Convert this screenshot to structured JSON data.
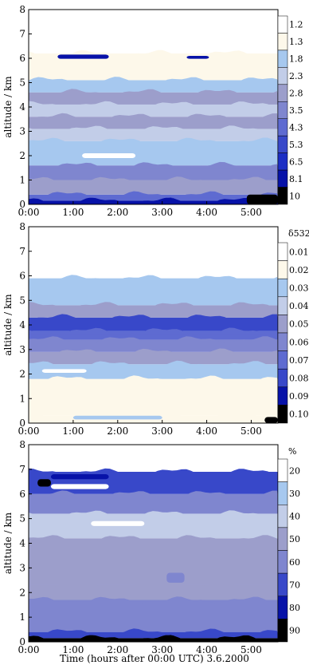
{
  "x_axis_title": "Time (hours after 00:00 UTC) 3.6.2000",
  "chart_data": [
    {
      "type": "heatmap",
      "ylabel": "altitude / km",
      "colorbar_title": "",
      "x_ticks": [
        "0:00",
        "1:00",
        "2:00",
        "3:00",
        "4:00",
        "5:00"
      ],
      "y_ticks": [
        "0",
        "1",
        "2",
        "3",
        "4",
        "5",
        "6",
        "7",
        "8"
      ],
      "xlim": [
        0,
        5.6
      ],
      "ylim": [
        0,
        8
      ],
      "colorbar_levels": [
        "1.2",
        "1.3",
        "1.8",
        "2.3",
        "2.8",
        "3.5",
        "4.3",
        "5.3",
        "6.5",
        "8.1",
        "10"
      ],
      "colorbar_colors": [
        "#ffffff",
        "#fdf8ea",
        "#a6c8ef",
        "#c2cde8",
        "#9c9ecb",
        "#7f86cf",
        "#5e6bd1",
        "#3848c9",
        "#1c2ec4",
        "#0712a8",
        "#000000"
      ],
      "layers": [
        {
          "y0": 0.0,
          "y1": 0.15,
          "level": 9
        },
        {
          "y0": 0.15,
          "y1": 0.4,
          "level": 6
        },
        {
          "y0": 0.4,
          "y1": 1.0,
          "level": 4
        },
        {
          "y0": 1.0,
          "y1": 1.6,
          "level": 5
        },
        {
          "y0": 1.6,
          "y1": 2.6,
          "level": 2
        },
        {
          "y0": 2.6,
          "y1": 3.1,
          "level": 3
        },
        {
          "y0": 3.1,
          "y1": 3.6,
          "level": 4
        },
        {
          "y0": 3.6,
          "y1": 4.1,
          "level": 3
        },
        {
          "y0": 4.1,
          "y1": 4.6,
          "level": 4
        },
        {
          "y0": 4.6,
          "y1": 5.1,
          "level": 2
        },
        {
          "y0": 5.1,
          "y1": 6.2,
          "level": 1
        },
        {
          "y0": 6.2,
          "y1": 8.0,
          "level": 0
        }
      ],
      "patches": [
        {
          "x0": 0.65,
          "x1": 1.8,
          "y0": 5.98,
          "y1": 6.15,
          "level": 9
        },
        {
          "x0": 3.55,
          "x1": 4.05,
          "y0": 5.98,
          "y1": 6.1,
          "level": 9
        },
        {
          "x0": 4.9,
          "x1": 5.6,
          "y0": 0.0,
          "y1": 0.4,
          "level": 10
        },
        {
          "x0": 1.2,
          "x1": 2.4,
          "y0": 1.9,
          "y1": 2.1,
          "level": 0
        }
      ]
    },
    {
      "type": "heatmap",
      "ylabel": "altitude / km",
      "colorbar_title": "δ532",
      "x_ticks": [
        "0:00",
        "1:00",
        "2:00",
        "3:00",
        "4:00",
        "5:00"
      ],
      "y_ticks": [
        "0",
        "1",
        "2",
        "3",
        "4",
        "5",
        "6",
        "7",
        "8"
      ],
      "xlim": [
        0,
        5.6
      ],
      "ylim": [
        0,
        8
      ],
      "colorbar_levels": [
        "0.01",
        "0.02",
        "0.03",
        "0.04",
        "0.05",
        "0.06",
        "0.07",
        "0.08",
        "0.09",
        "0.10"
      ],
      "colorbar_colors": [
        "#ffffff",
        "#fdf8ea",
        "#a6c8ef",
        "#c2cde8",
        "#9c9ecb",
        "#7f86cf",
        "#5e6bd1",
        "#3848c9",
        "#0712a8",
        "#000000"
      ],
      "layers": [
        {
          "y0": 0.0,
          "y1": 0.3,
          "level": 1
        },
        {
          "y0": 0.3,
          "y1": 1.8,
          "level": 1
        },
        {
          "y0": 1.8,
          "y1": 2.4,
          "level": 2
        },
        {
          "y0": 2.4,
          "y1": 2.9,
          "level": 4
        },
        {
          "y0": 2.9,
          "y1": 3.4,
          "level": 5
        },
        {
          "y0": 3.4,
          "y1": 3.75,
          "level": 6
        },
        {
          "y0": 3.75,
          "y1": 4.3,
          "level": 7
        },
        {
          "y0": 4.3,
          "y1": 4.8,
          "level": 4
        },
        {
          "y0": 4.8,
          "y1": 5.9,
          "level": 2
        },
        {
          "y0": 5.9,
          "y1": 8.0,
          "level": 0
        }
      ],
      "patches": [
        {
          "x0": 5.3,
          "x1": 5.6,
          "y0": 0.0,
          "y1": 0.25,
          "level": 9
        },
        {
          "x0": 1.0,
          "x1": 3.0,
          "y0": 0.15,
          "y1": 0.3,
          "level": 2
        },
        {
          "x0": 0.3,
          "x1": 1.3,
          "y0": 2.05,
          "y1": 2.2,
          "level": 0
        }
      ]
    },
    {
      "type": "heatmap",
      "ylabel": "altitude / km",
      "colorbar_title": "%",
      "x_ticks": [
        "0:00",
        "1:00",
        "2:00",
        "3:00",
        "4:00",
        "5:00"
      ],
      "y_ticks": [
        "0",
        "1",
        "2",
        "3",
        "4",
        "5",
        "6",
        "7",
        "8"
      ],
      "xlim": [
        0,
        5.6
      ],
      "ylim": [
        0,
        8
      ],
      "colorbar_levels": [
        "20",
        "30",
        "40",
        "50",
        "60",
        "70",
        "80",
        "90"
      ],
      "colorbar_colors": [
        "#ffffff",
        "#a6c8ef",
        "#c2cde8",
        "#9c9ecb",
        "#7f86cf",
        "#3848c9",
        "#0712a8",
        "#000000"
      ],
      "layers": [
        {
          "y0": 0.0,
          "y1": 0.15,
          "level": 7
        },
        {
          "y0": 0.15,
          "y1": 0.4,
          "level": 5
        },
        {
          "y0": 0.4,
          "y1": 1.7,
          "level": 4
        },
        {
          "y0": 1.7,
          "y1": 2.3,
          "level": 3
        },
        {
          "y0": 2.3,
          "y1": 4.2,
          "level": 3
        },
        {
          "y0": 4.2,
          "y1": 5.2,
          "level": 2
        },
        {
          "y0": 5.2,
          "y1": 6.0,
          "level": 4
        },
        {
          "y0": 6.0,
          "y1": 6.9,
          "level": 5
        },
        {
          "y0": 6.9,
          "y1": 8.0,
          "level": 0
        }
      ],
      "patches": [
        {
          "x0": 0.5,
          "x1": 1.8,
          "y0": 6.2,
          "y1": 6.4,
          "level": 0
        },
        {
          "x0": 0.5,
          "x1": 1.8,
          "y0": 6.6,
          "y1": 6.8,
          "level": 6
        },
        {
          "x0": 0.2,
          "x1": 0.5,
          "y0": 6.3,
          "y1": 6.6,
          "level": 7
        },
        {
          "x0": 1.4,
          "x1": 2.6,
          "y0": 4.7,
          "y1": 4.9,
          "level": 0
        },
        {
          "x0": 3.1,
          "x1": 3.5,
          "y0": 2.4,
          "y1": 2.8,
          "level": 4
        }
      ]
    }
  ]
}
